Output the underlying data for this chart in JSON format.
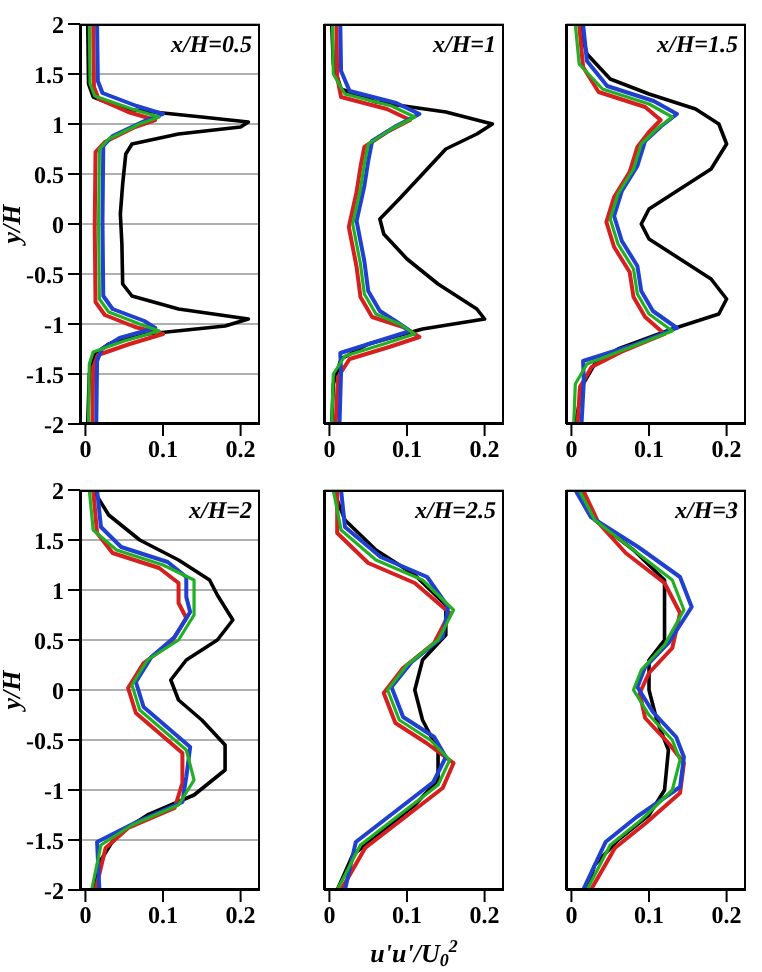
{
  "chart_data": [
    {
      "type": "line",
      "annotations": [
        "x/H=0.5"
      ],
      "ylabel": "y/H",
      "xlim": [
        -0.007,
        0.225
      ],
      "xticks": [
        0,
        0.1,
        0.2
      ],
      "ylim": [
        -2,
        2
      ],
      "yticks": [
        -2,
        -1.5,
        -1,
        -0.5,
        0,
        0.5,
        1,
        1.5,
        2
      ],
      "grid": "y",
      "series": [
        {
          "color": "#000000",
          "x": [
            0.003,
            0.004,
            0.01,
            0.05,
            0.15,
            0.21,
            0.2,
            0.12,
            0.06,
            0.052,
            0.048,
            0.045,
            0.047,
            0.048,
            0.06,
            0.12,
            0.21,
            0.18,
            0.08,
            0.03,
            0.012,
            0.005,
            0.003
          ],
          "values": [
            2,
            1.4,
            1.27,
            1.15,
            1.07,
            1.02,
            0.97,
            0.9,
            0.8,
            0.7,
            0.4,
            0.1,
            -0.2,
            -0.6,
            -0.72,
            -0.85,
            -0.95,
            -1.02,
            -1.1,
            -1.2,
            -1.3,
            -1.5,
            -2
          ]
        },
        {
          "color": "#d62020",
          "x": [
            0.01,
            0.011,
            0.017,
            0.055,
            0.09,
            0.064,
            0.025,
            0.013,
            0.012,
            0.013,
            0.025,
            0.064,
            0.1,
            0.057,
            0.016,
            0.01,
            0.009
          ],
          "values": [
            2,
            1.37,
            1.25,
            1.12,
            1.04,
            0.97,
            0.82,
            0.72,
            -0.03,
            -0.78,
            -0.91,
            -1.03,
            -1.1,
            -1.2,
            -1.31,
            -1.43,
            -2
          ]
        },
        {
          "color": "#2040d0",
          "x": [
            0.015,
            0.016,
            0.022,
            0.066,
            0.1,
            0.076,
            0.035,
            0.023,
            0.022,
            0.023,
            0.035,
            0.076,
            0.09,
            0.044,
            0.021,
            0.015,
            0.014
          ],
          "values": [
            2,
            1.43,
            1.31,
            1.18,
            1.1,
            1.03,
            0.88,
            0.78,
            0.03,
            -0.72,
            -0.85,
            -0.97,
            -1.04,
            -1.14,
            -1.25,
            -1.37,
            -2
          ]
        },
        {
          "color": "#22b022",
          "x": [
            0.005,
            0.006,
            0.012,
            0.06,
            0.095,
            0.07,
            0.03,
            0.018,
            0.017,
            0.018,
            0.03,
            0.07,
            0.095,
            0.05,
            0.01,
            0.005,
            0.004
          ],
          "values": [
            2,
            1.4,
            1.28,
            1.15,
            1.07,
            1.0,
            0.85,
            0.75,
            0,
            -0.75,
            -0.88,
            -1.0,
            -1.07,
            -1.17,
            -1.28,
            -1.4,
            -2
          ]
        }
      ]
    },
    {
      "type": "line",
      "annotations": [
        "x/H=1"
      ],
      "tick_labels": "x",
      "xlim": [
        -0.007,
        0.225
      ],
      "xticks": [
        0,
        0.1,
        0.2
      ],
      "ylim": [
        -2,
        2
      ],
      "yticks": [
        -2,
        -1.5,
        -1,
        -0.5,
        0,
        0.5,
        1,
        1.5,
        2
      ],
      "grid": "y",
      "series": [
        {
          "color": "#000000",
          "x": [
            0.003,
            0.005,
            0.015,
            0.06,
            0.15,
            0.21,
            0.19,
            0.15,
            0.12,
            0.09,
            0.065,
            0.07,
            0.1,
            0.14,
            0.19,
            0.2,
            0.12,
            0.05,
            0.015,
            0.005,
            0.003
          ],
          "values": [
            2,
            1.6,
            1.35,
            1.22,
            1.12,
            1.0,
            0.9,
            0.75,
            0.5,
            0.25,
            0.05,
            -0.1,
            -0.35,
            -0.6,
            -0.85,
            -0.95,
            -1.05,
            -1.2,
            -1.35,
            -1.6,
            -2
          ]
        },
        {
          "color": "#d62020",
          "x": [
            0.009,
            0.01,
            0.015,
            0.074,
            0.104,
            0.074,
            0.045,
            0.04,
            0.035,
            0.025,
            0.035,
            0.04,
            0.055,
            0.095,
            0.116,
            0.077,
            0.026,
            0.011,
            0.008
          ],
          "values": [
            2,
            1.47,
            1.27,
            1.15,
            1.04,
            0.92,
            0.77,
            0.57,
            0.32,
            -0.03,
            -0.43,
            -0.73,
            -0.93,
            -1.03,
            -1.13,
            -1.23,
            -1.35,
            -1.53,
            -2
          ]
        },
        {
          "color": "#2040d0",
          "x": [
            0.014,
            0.015,
            0.026,
            0.086,
            0.116,
            0.086,
            0.055,
            0.05,
            0.045,
            0.035,
            0.045,
            0.05,
            0.065,
            0.085,
            0.104,
            0.063,
            0.014,
            0.015,
            0.013
          ],
          "values": [
            2,
            1.53,
            1.33,
            1.21,
            1.1,
            0.98,
            0.83,
            0.63,
            0.38,
            0.03,
            -0.37,
            -0.67,
            -0.87,
            -0.97,
            -1.07,
            -1.17,
            -1.29,
            -1.47,
            -2
          ]
        },
        {
          "color": "#22b022",
          "x": [
            0.004,
            0.005,
            0.02,
            0.08,
            0.11,
            0.08,
            0.05,
            0.045,
            0.04,
            0.03,
            0.04,
            0.045,
            0.06,
            0.09,
            0.11,
            0.07,
            0.02,
            0.005,
            0.003
          ],
          "values": [
            2,
            1.5,
            1.3,
            1.18,
            1.07,
            0.95,
            0.8,
            0.6,
            0.35,
            0,
            -0.4,
            -0.7,
            -0.9,
            -1.0,
            -1.1,
            -1.2,
            -1.32,
            -1.5,
            -2
          ]
        }
      ]
    },
    {
      "type": "line",
      "annotations": [
        "x/H=1.5"
      ],
      "tick_labels": "x",
      "xlim": [
        -0.007,
        0.225
      ],
      "xticks": [
        0,
        0.1,
        0.2
      ],
      "ylim": [
        -2,
        2
      ],
      "yticks": [
        -2,
        -1.5,
        -1,
        -0.5,
        0,
        0.5,
        1,
        1.5,
        2
      ],
      "grid": "y",
      "series": [
        {
          "color": "#000000",
          "x": [
            0.01,
            0.02,
            0.05,
            0.1,
            0.16,
            0.19,
            0.2,
            0.18,
            0.14,
            0.1,
            0.09,
            0.1,
            0.14,
            0.18,
            0.2,
            0.19,
            0.13,
            0.06,
            0.03,
            0.015,
            0.005
          ],
          "values": [
            2,
            1.7,
            1.45,
            1.3,
            1.15,
            1.0,
            0.8,
            0.55,
            0.35,
            0.15,
            0,
            -0.15,
            -0.35,
            -0.55,
            -0.75,
            -0.9,
            -1.05,
            -1.25,
            -1.4,
            -1.6,
            -2
          ]
        },
        {
          "color": "#d62020",
          "x": [
            0.01,
            0.015,
            0.035,
            0.095,
            0.115,
            0.1,
            0.085,
            0.075,
            0.055,
            0.045,
            0.055,
            0.075,
            0.08,
            0.095,
            0.12,
            0.064,
            0.026,
            0.011,
            0.008
          ],
          "values": [
            2,
            1.57,
            1.32,
            1.17,
            1.04,
            0.92,
            0.77,
            0.52,
            0.27,
            0.02,
            -0.23,
            -0.48,
            -0.73,
            -0.93,
            -1.1,
            -1.28,
            -1.43,
            -1.63,
            -2
          ]
        },
        {
          "color": "#2040d0",
          "x": [
            0.015,
            0.02,
            0.046,
            0.106,
            0.136,
            0.116,
            0.095,
            0.085,
            0.065,
            0.055,
            0.065,
            0.085,
            0.09,
            0.105,
            0.136,
            0.076,
            0.015,
            0.016,
            0.013
          ],
          "values": [
            2,
            1.63,
            1.38,
            1.23,
            1.1,
            0.98,
            0.83,
            0.58,
            0.33,
            0.08,
            -0.17,
            -0.42,
            -0.67,
            -0.87,
            -1.04,
            -1.22,
            -1.37,
            -1.57,
            -2
          ]
        },
        {
          "color": "#22b022",
          "x": [
            0.005,
            0.01,
            0.04,
            0.1,
            0.13,
            0.11,
            0.09,
            0.08,
            0.06,
            0.05,
            0.06,
            0.08,
            0.085,
            0.1,
            0.13,
            0.07,
            0.02,
            0.005,
            0.003
          ],
          "values": [
            2,
            1.6,
            1.35,
            1.2,
            1.07,
            0.95,
            0.8,
            0.55,
            0.3,
            0.05,
            -0.2,
            -0.45,
            -0.7,
            -0.9,
            -1.07,
            -1.25,
            -1.4,
            -1.6,
            -2
          ]
        }
      ]
    },
    {
      "type": "line",
      "annotations": [
        "x/H=2"
      ],
      "ylabel": "y/H",
      "xlim": [
        -0.007,
        0.225
      ],
      "xticks": [
        0,
        0.1,
        0.2
      ],
      "ylim": [
        -2,
        2
      ],
      "yticks": [
        -2,
        -1.5,
        -1,
        -0.5,
        0,
        0.5,
        1,
        1.5,
        2
      ],
      "grid": "y",
      "series": [
        {
          "color": "#000000",
          "x": [
            0.01,
            0.03,
            0.07,
            0.12,
            0.16,
            0.17,
            0.19,
            0.17,
            0.13,
            0.11,
            0.12,
            0.15,
            0.18,
            0.18,
            0.14,
            0.08,
            0.04,
            0.02,
            0.01
          ],
          "values": [
            2,
            1.75,
            1.5,
            1.3,
            1.1,
            0.95,
            0.7,
            0.5,
            0.3,
            0.1,
            -0.1,
            -0.3,
            -0.55,
            -0.8,
            -1.05,
            -1.25,
            -1.45,
            -1.7,
            -2
          ]
        },
        {
          "color": "#d62020",
          "x": [
            0.01,
            0.015,
            0.035,
            0.095,
            0.12,
            0.12,
            0.13,
            0.11,
            0.075,
            0.055,
            0.065,
            0.095,
            0.125,
            0.125,
            0.115,
            0.055,
            0.026,
            0.013
          ],
          "values": [
            2,
            1.57,
            1.37,
            1.22,
            1.07,
            0.87,
            0.72,
            0.47,
            0.27,
            0.02,
            -0.23,
            -0.43,
            -0.63,
            -0.93,
            -1.18,
            -1.38,
            -1.58,
            -2
          ]
        },
        {
          "color": "#2040d0",
          "x": [
            0.015,
            0.02,
            0.046,
            0.106,
            0.13,
            0.13,
            0.135,
            0.115,
            0.085,
            0.065,
            0.075,
            0.105,
            0.135,
            0.13,
            0.125,
            0.066,
            0.015,
            0.018
          ],
          "values": [
            2,
            1.63,
            1.43,
            1.28,
            1.13,
            0.93,
            0.78,
            0.53,
            0.33,
            0.08,
            -0.17,
            -0.37,
            -0.57,
            -0.87,
            -1.12,
            -1.32,
            -1.52,
            -2
          ]
        },
        {
          "color": "#22b022",
          "x": [
            0.005,
            0.01,
            0.04,
            0.1,
            0.14,
            0.14,
            0.14,
            0.12,
            0.08,
            0.06,
            0.07,
            0.1,
            0.13,
            0.14,
            0.12,
            0.06,
            0.02,
            0.008
          ],
          "values": [
            2,
            1.6,
            1.4,
            1.25,
            1.1,
            0.9,
            0.75,
            0.5,
            0.3,
            0.05,
            -0.2,
            -0.4,
            -0.6,
            -0.9,
            -1.15,
            -1.35,
            -1.55,
            -2
          ]
        }
      ]
    },
    {
      "type": "line",
      "annotations": [
        "x/H=2.5"
      ],
      "xlabel": "u'u'/U$_{0}$$^{2}$",
      "tick_labels": "x",
      "xlim": [
        -0.007,
        0.225
      ],
      "xticks": [
        0,
        0.1,
        0.2
      ],
      "ylim": [
        -2,
        2
      ],
      "yticks": [
        -2,
        -1.5,
        -1,
        -0.5,
        0,
        0.5,
        1,
        1.5,
        2
      ],
      "grid": "y",
      "series": [
        {
          "color": "#000000",
          "x": [
            0.005,
            0.02,
            0.06,
            0.11,
            0.15,
            0.15,
            0.12,
            0.11,
            0.12,
            0.14,
            0.14,
            0.11,
            0.07,
            0.03,
            0.01
          ],
          "values": [
            2,
            1.7,
            1.4,
            1.15,
            0.85,
            0.55,
            0.3,
            0,
            -0.3,
            -0.6,
            -0.9,
            -1.15,
            -1.4,
            -1.65,
            -2
          ]
        },
        {
          "color": "#d62020",
          "x": [
            0.01,
            0.01,
            0.05,
            0.11,
            0.155,
            0.135,
            0.095,
            0.07,
            0.085,
            0.125,
            0.16,
            0.146,
            0.096,
            0.046,
            0.015
          ],
          "values": [
            2,
            1.57,
            1.27,
            1.07,
            0.77,
            0.47,
            0.22,
            -0.03,
            -0.33,
            -0.53,
            -0.73,
            -0.98,
            -1.28,
            -1.58,
            -2
          ]
        },
        {
          "color": "#2040d0",
          "x": [
            0.015,
            0.02,
            0.066,
            0.126,
            0.153,
            0.146,
            0.106,
            0.08,
            0.095,
            0.135,
            0.15,
            0.134,
            0.084,
            0.034,
            0.02
          ],
          "values": [
            2,
            1.63,
            1.33,
            1.13,
            0.83,
            0.53,
            0.28,
            0.03,
            -0.27,
            -0.47,
            -0.67,
            -0.92,
            -1.22,
            -1.52,
            -2
          ]
        },
        {
          "color": "#22b022",
          "x": [
            0.005,
            0.015,
            0.06,
            0.12,
            0.16,
            0.14,
            0.1,
            0.075,
            0.09,
            0.13,
            0.155,
            0.14,
            0.09,
            0.04,
            0.01
          ],
          "values": [
            2,
            1.6,
            1.3,
            1.1,
            0.8,
            0.5,
            0.25,
            0,
            -0.3,
            -0.5,
            -0.7,
            -0.95,
            -1.25,
            -1.55,
            -2
          ]
        }
      ]
    },
    {
      "type": "line",
      "annotations": [
        "x/H=3"
      ],
      "tick_labels": "x",
      "xlim": [
        -0.007,
        0.225
      ],
      "xticks": [
        0,
        0.1,
        0.2
      ],
      "ylim": [
        -2,
        2
      ],
      "yticks": [
        -2,
        -1.5,
        -1,
        -0.5,
        0,
        0.5,
        1,
        1.5,
        2
      ],
      "grid": "y",
      "series": [
        {
          "color": "#000000",
          "x": [
            0.01,
            0.03,
            0.08,
            0.12,
            0.12,
            0.12,
            0.1,
            0.1,
            0.11,
            0.125,
            0.12,
            0.1,
            0.06,
            0.03,
            0.02
          ],
          "values": [
            2,
            1.7,
            1.4,
            1.1,
            0.8,
            0.5,
            0.3,
            0,
            -0.3,
            -0.6,
            -1.0,
            -1.25,
            -1.5,
            -1.75,
            -2
          ]
        },
        {
          "color": "#d62020",
          "x": [
            0.015,
            0.035,
            0.07,
            0.12,
            0.14,
            0.13,
            0.1,
            0.088,
            0.095,
            0.125,
            0.145,
            0.14,
            0.096,
            0.056,
            0.025
          ],
          "values": [
            2,
            1.67,
            1.37,
            1.07,
            0.77,
            0.42,
            0.17,
            -0.03,
            -0.28,
            -0.53,
            -0.73,
            -1.03,
            -1.33,
            -1.58,
            -2
          ]
        },
        {
          "color": "#2040d0",
          "x": [
            0.005,
            0.025,
            0.086,
            0.14,
            0.155,
            0.126,
            0.095,
            0.085,
            0.105,
            0.135,
            0.145,
            0.14,
            0.084,
            0.044,
            0.015
          ],
          "values": [
            2,
            1.73,
            1.43,
            1.13,
            0.83,
            0.48,
            0.23,
            0.03,
            -0.22,
            -0.47,
            -0.67,
            -0.97,
            -1.27,
            -1.52,
            -2
          ]
        },
        {
          "color": "#22b022",
          "x": [
            0.01,
            0.03,
            0.08,
            0.13,
            0.145,
            0.12,
            0.09,
            0.08,
            0.1,
            0.13,
            0.14,
            0.13,
            0.09,
            0.05,
            0.02
          ],
          "values": [
            2,
            1.7,
            1.4,
            1.1,
            0.8,
            0.45,
            0.2,
            0,
            -0.25,
            -0.5,
            -0.7,
            -1.0,
            -1.3,
            -1.55,
            -2
          ]
        }
      ]
    }
  ]
}
